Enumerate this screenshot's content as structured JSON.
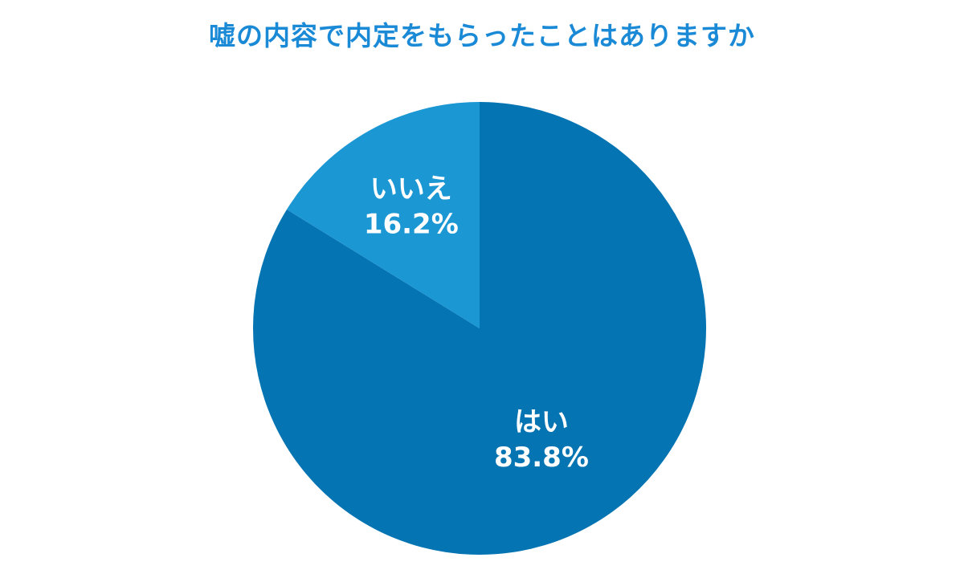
{
  "chart_data": {
    "type": "pie",
    "title": "嘘の内容で内定をもらったことはありますか",
    "slices": [
      {
        "label": "はい",
        "value": 83.8,
        "value_label": "83.8%",
        "color": "#0574b3"
      },
      {
        "label": "いいえ",
        "value": 16.2,
        "value_label": "16.2%",
        "color": "#1b97d4"
      }
    ],
    "start": "12 o'clock",
    "direction": "clockwise",
    "legend": "none",
    "labels": "inside slices"
  }
}
